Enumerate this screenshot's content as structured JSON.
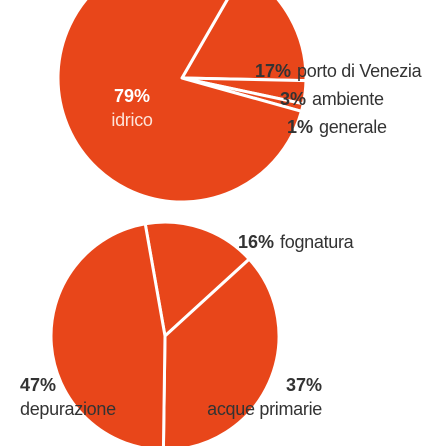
{
  "chart_data": [
    {
      "type": "pie",
      "categories": [
        "porto di Venezia",
        "ambiente",
        "generale",
        "idrico"
      ],
      "values": [
        17,
        3,
        1,
        79
      ],
      "value_labels": [
        "17%",
        "3%",
        "1%",
        "79%"
      ],
      "color": "#e8461a"
    },
    {
      "type": "pie",
      "categories": [
        "fognatura",
        "acque primarie",
        "depurazione"
      ],
      "values": [
        16,
        37,
        47
      ],
      "value_labels": [
        "16%",
        "37%",
        "47%"
      ],
      "color": "#e8461a"
    }
  ]
}
